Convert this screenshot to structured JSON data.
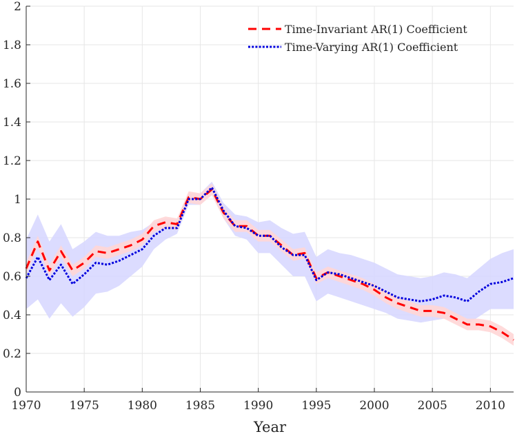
{
  "chart_data": {
    "type": "line",
    "title": "",
    "xlabel": "Year",
    "ylabel": "",
    "xlim": [
      1970,
      2012
    ],
    "ylim": [
      0,
      2
    ],
    "xticks": [
      1970,
      1975,
      1980,
      1985,
      1990,
      1995,
      2000,
      2005,
      2010
    ],
    "xtick_labels": [
      "1970",
      "1975",
      "1980",
      "1985",
      "1990",
      "1995",
      "2000",
      "2005",
      "2010"
    ],
    "yticks": [
      0,
      0.2,
      0.4,
      0.6,
      0.8,
      1.0,
      1.2,
      1.4,
      1.6,
      1.8,
      2.0
    ],
    "ytick_labels": [
      "0",
      "0.2",
      "0.4",
      "0.6",
      "0.8",
      "1",
      "1.2",
      "1.4",
      "1.6",
      "1.8",
      "2"
    ],
    "grid": true,
    "legend_position": "top-right",
    "x": [
      1970,
      1971,
      1972,
      1973,
      1974,
      1975,
      1976,
      1977,
      1978,
      1979,
      1980,
      1981,
      1982,
      1983,
      1984,
      1985,
      1986,
      1987,
      1988,
      1989,
      1990,
      1991,
      1992,
      1993,
      1994,
      1995,
      1996,
      1997,
      1998,
      1999,
      2000,
      2001,
      2002,
      2003,
      2004,
      2005,
      2006,
      2007,
      2008,
      2009,
      2010,
      2011,
      2012
    ],
    "series": [
      {
        "name": "Time-Invariant AR(1) Coefficient",
        "color": "#ff0000",
        "style": "dashed",
        "values": [
          0.64,
          0.78,
          0.63,
          0.73,
          0.63,
          0.67,
          0.73,
          0.72,
          0.74,
          0.76,
          0.79,
          0.86,
          0.88,
          0.87,
          1.01,
          1.0,
          1.05,
          0.93,
          0.86,
          0.86,
          0.81,
          0.81,
          0.76,
          0.71,
          0.72,
          0.59,
          0.62,
          0.6,
          0.58,
          0.56,
          0.53,
          0.49,
          0.46,
          0.44,
          0.42,
          0.42,
          0.41,
          0.38,
          0.35,
          0.35,
          0.34,
          0.31,
          0.27
        ],
        "band_lower": [
          0.61,
          0.75,
          0.6,
          0.7,
          0.6,
          0.64,
          0.7,
          0.69,
          0.71,
          0.73,
          0.76,
          0.83,
          0.85,
          0.84,
          0.98,
          0.97,
          1.02,
          0.9,
          0.83,
          0.83,
          0.78,
          0.78,
          0.73,
          0.68,
          0.69,
          0.56,
          0.59,
          0.57,
          0.55,
          0.53,
          0.5,
          0.46,
          0.43,
          0.41,
          0.39,
          0.39,
          0.38,
          0.35,
          0.32,
          0.32,
          0.31,
          0.28,
          0.24
        ],
        "band_upper": [
          0.67,
          0.81,
          0.66,
          0.76,
          0.66,
          0.7,
          0.76,
          0.75,
          0.77,
          0.79,
          0.82,
          0.89,
          0.91,
          0.9,
          1.04,
          1.03,
          1.08,
          0.96,
          0.89,
          0.89,
          0.84,
          0.84,
          0.79,
          0.74,
          0.75,
          0.62,
          0.65,
          0.63,
          0.61,
          0.59,
          0.56,
          0.52,
          0.49,
          0.47,
          0.45,
          0.45,
          0.44,
          0.41,
          0.38,
          0.38,
          0.37,
          0.34,
          0.3
        ]
      },
      {
        "name": "Time-Varying AR(1) Coefficient",
        "color": "#0000dd",
        "style": "dotted",
        "values": [
          0.59,
          0.7,
          0.58,
          0.66,
          0.56,
          0.61,
          0.67,
          0.66,
          0.68,
          0.71,
          0.74,
          0.81,
          0.85,
          0.85,
          1.0,
          1.0,
          1.06,
          0.94,
          0.86,
          0.85,
          0.81,
          0.81,
          0.75,
          0.71,
          0.71,
          0.58,
          0.62,
          0.61,
          0.59,
          0.57,
          0.55,
          0.52,
          0.49,
          0.48,
          0.47,
          0.48,
          0.5,
          0.49,
          0.47,
          0.52,
          0.56,
          0.57,
          0.59
        ],
        "band_lower": [
          0.43,
          0.48,
          0.38,
          0.46,
          0.39,
          0.44,
          0.51,
          0.52,
          0.55,
          0.6,
          0.65,
          0.74,
          0.79,
          0.82,
          0.97,
          0.97,
          1.03,
          0.9,
          0.81,
          0.79,
          0.72,
          0.72,
          0.66,
          0.6,
          0.6,
          0.47,
          0.51,
          0.49,
          0.47,
          0.45,
          0.43,
          0.41,
          0.38,
          0.37,
          0.36,
          0.37,
          0.38,
          0.37,
          0.35,
          0.39,
          0.43,
          0.43,
          0.43
        ],
        "band_upper": [
          0.79,
          0.92,
          0.78,
          0.87,
          0.74,
          0.78,
          0.83,
          0.81,
          0.81,
          0.83,
          0.84,
          0.88,
          0.9,
          0.89,
          1.03,
          1.03,
          1.09,
          0.98,
          0.92,
          0.91,
          0.88,
          0.89,
          0.85,
          0.82,
          0.83,
          0.7,
          0.74,
          0.72,
          0.71,
          0.69,
          0.67,
          0.64,
          0.61,
          0.6,
          0.59,
          0.6,
          0.62,
          0.61,
          0.59,
          0.64,
          0.69,
          0.72,
          0.74
        ]
      }
    ]
  }
}
